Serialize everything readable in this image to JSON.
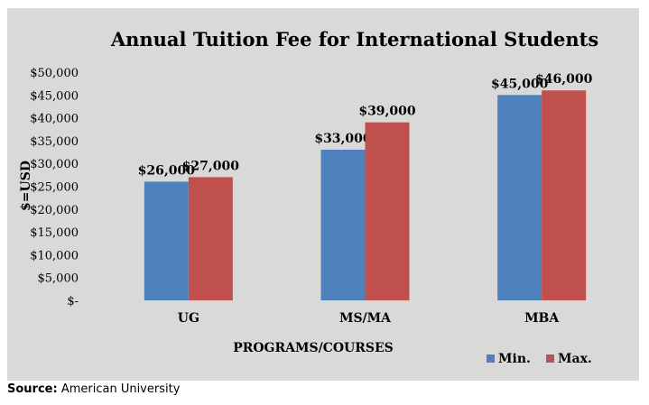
{
  "chart_data": {
    "type": "bar",
    "title": "Annual Tuition Fee for International Students",
    "xlabel": "PROGRAMS/COURSES",
    "ylabel": "$=USD",
    "categories": [
      "UG",
      "MS/MA",
      "MBA"
    ],
    "series": [
      {
        "name": "Min.",
        "color": "#4f81bd",
        "values": [
          26000,
          33000,
          45000
        ]
      },
      {
        "name": "Max.",
        "color": "#c0504d",
        "values": [
          27000,
          39000,
          46000
        ]
      }
    ],
    "ylim": [
      0,
      50000
    ],
    "yticks": [
      0,
      5000,
      10000,
      15000,
      20000,
      25000,
      30000,
      35000,
      40000,
      45000,
      50000
    ],
    "ytick_labels": [
      "$-",
      "$5,000",
      "$10,000",
      "$15,000",
      "$20,000",
      "$25,000",
      "$30,000",
      "$35,000",
      "$40,000",
      "$45,000",
      "$50,000"
    ],
    "data_labels": [
      [
        "$26,000",
        "$33,000",
        "$45,000"
      ],
      [
        "$27,000",
        "$39,000",
        "$46,000"
      ]
    ],
    "grid": false,
    "legend_position": "bottom-right"
  },
  "source": {
    "label": "Source:",
    "text": " American University"
  }
}
